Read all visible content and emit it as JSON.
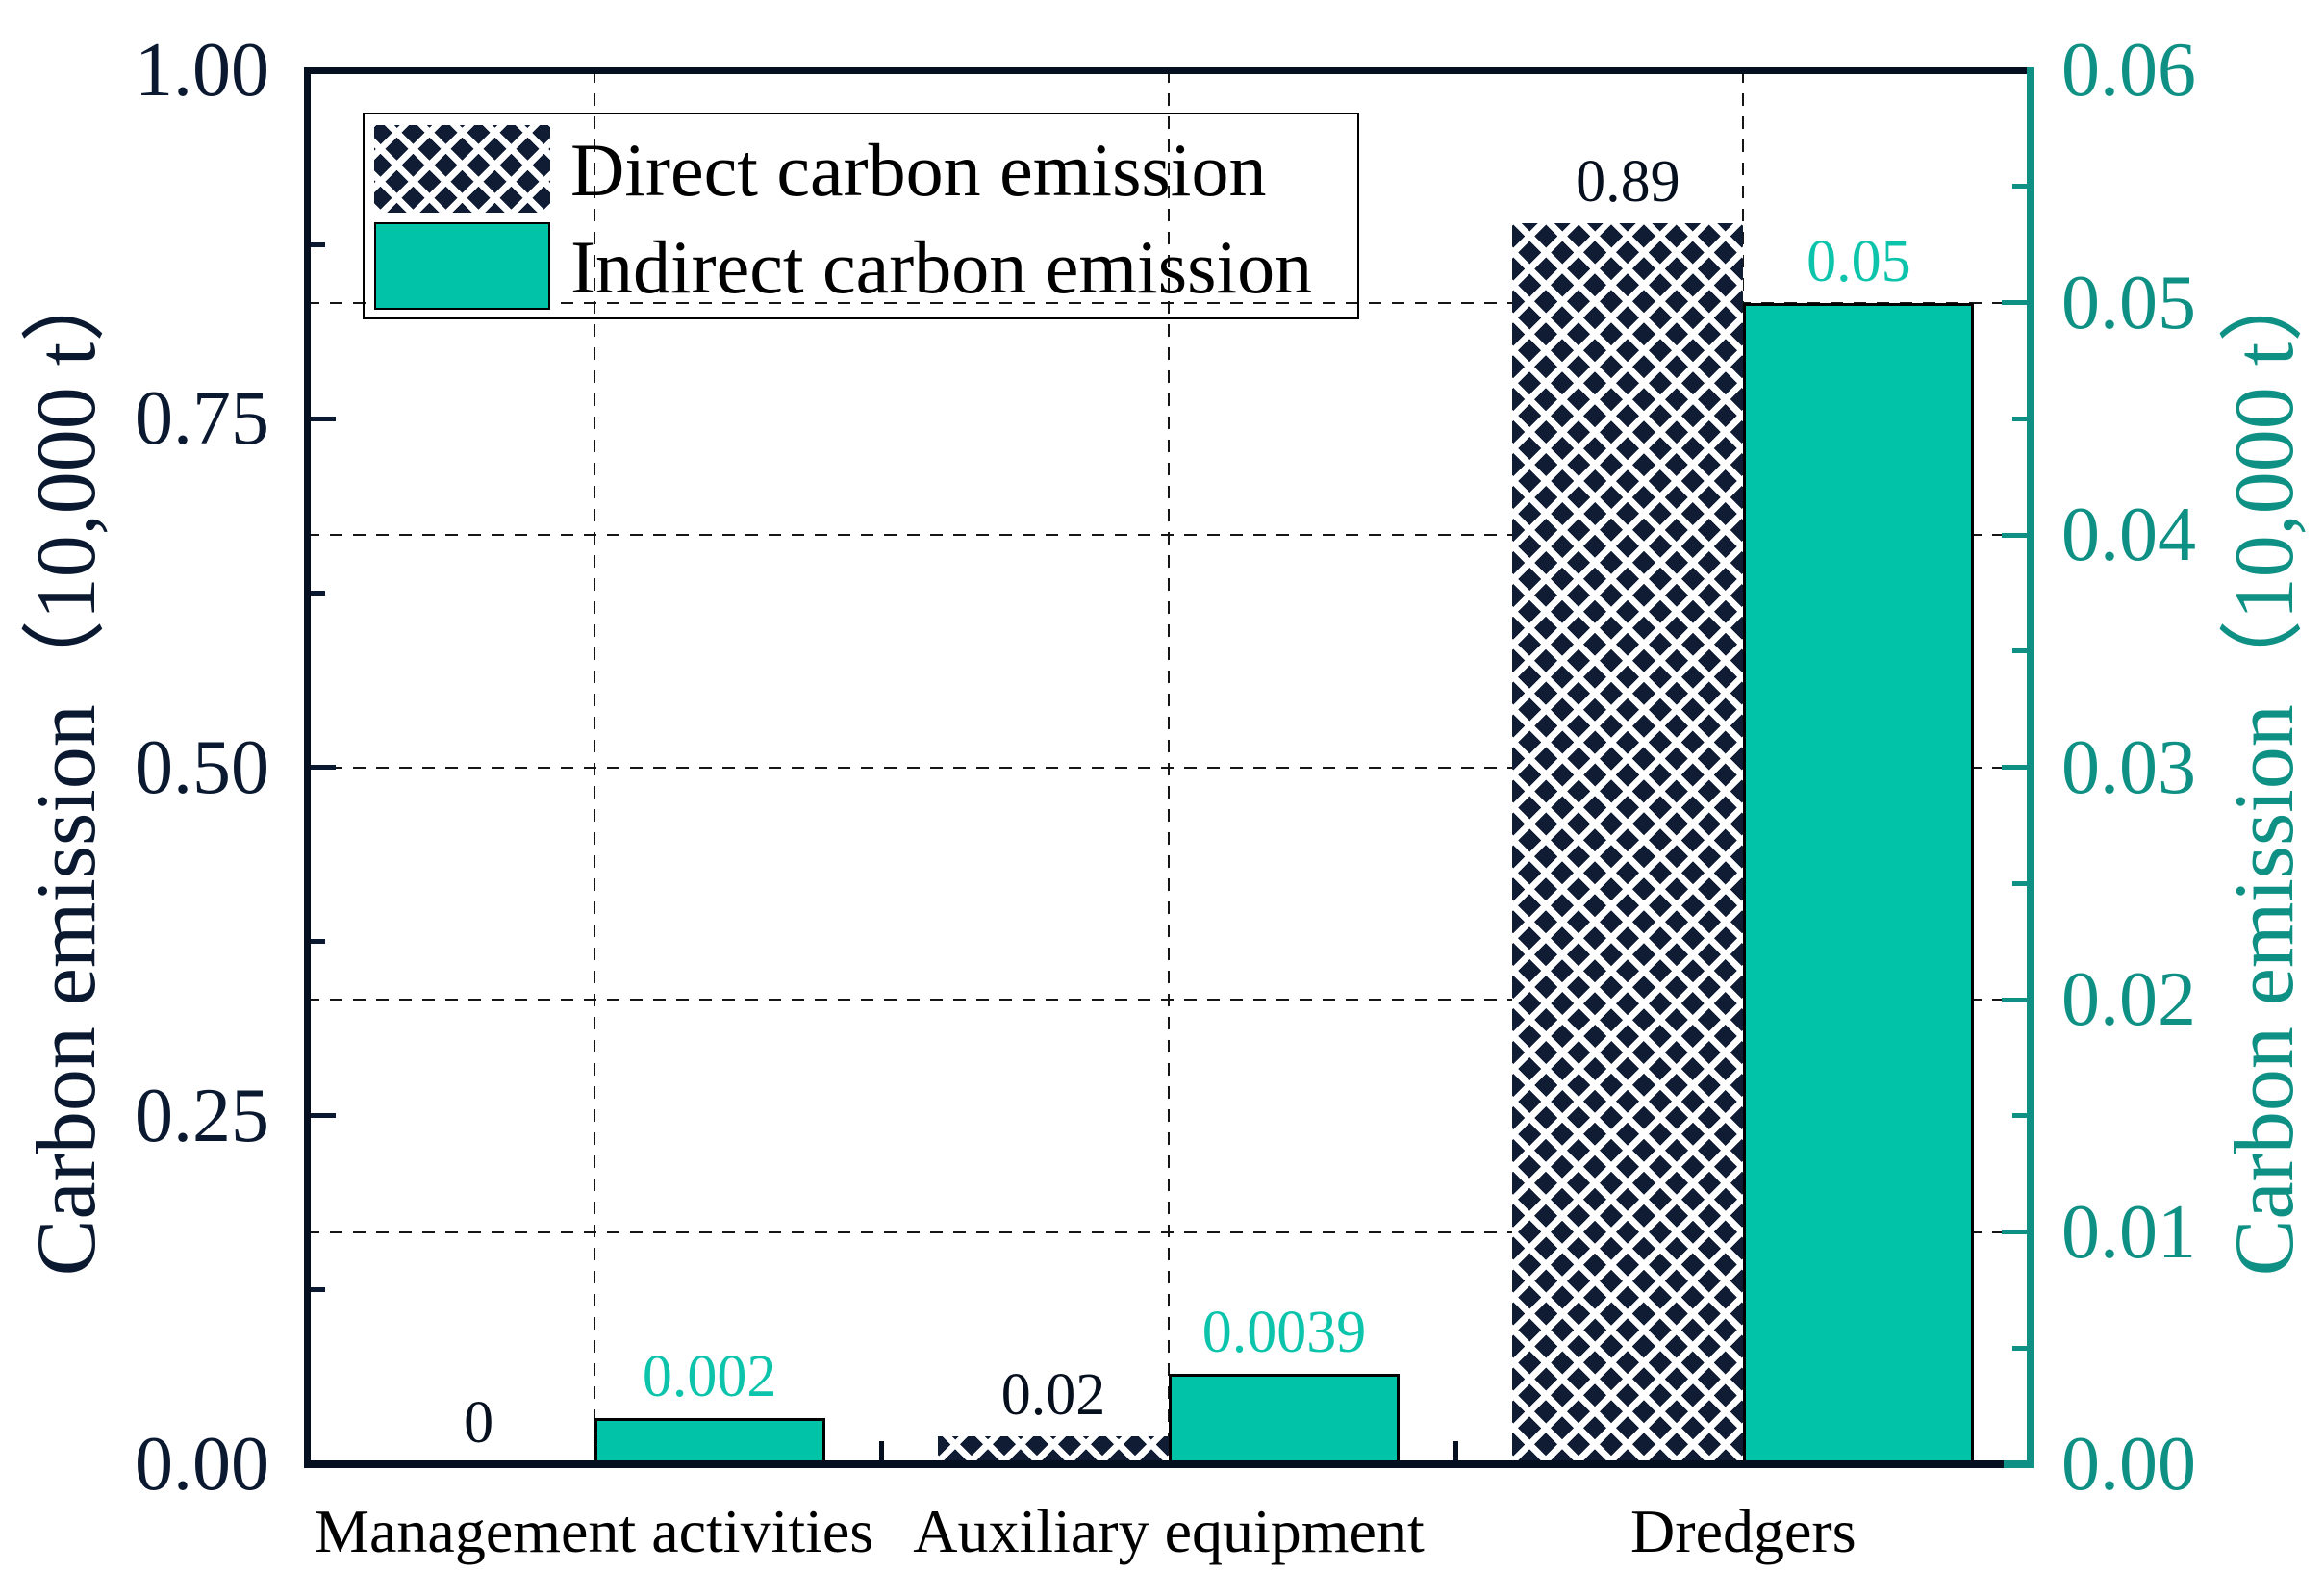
{
  "chart_data": {
    "type": "bar",
    "title": "",
    "categories": [
      "Management activities",
      "Auxiliary equipment",
      "Dredgers"
    ],
    "series": [
      {
        "name": "Direct carbon emission",
        "axis": "left",
        "values": [
          0,
          0.02,
          0.89
        ],
        "value_labels": [
          "0",
          "0.02",
          "0.89"
        ],
        "fill": "#101c34",
        "pattern": "white-diagonal-crosshatch"
      },
      {
        "name": "Indirect carbon emission",
        "axis": "right",
        "values": [
          0.002,
          0.0039,
          0.05
        ],
        "value_labels": [
          "0.002",
          "0.0039",
          "0.05"
        ],
        "fill": "#00c3a8",
        "pattern": "solid"
      }
    ],
    "left_axis": {
      "label": "Carbon emission（10,000 t）",
      "min": 0.0,
      "max": 1.0,
      "major_step": 0.25,
      "minor_step": 0.125,
      "tick_labels": [
        "0.00",
        "0.25",
        "0.50",
        "0.75",
        "1.00"
      ],
      "color": "#0a1930"
    },
    "right_axis": {
      "label": "Carbon emission（10,000 t）",
      "min": 0.0,
      "max": 0.06,
      "major_step": 0.01,
      "minor_step": 0.005,
      "tick_labels": [
        "0.00",
        "0.01",
        "0.02",
        "0.03",
        "0.04",
        "0.05",
        "0.06"
      ],
      "color": "#0e9184"
    },
    "grid": {
      "horizontal": "right-axis-majors",
      "vertical": "category-centers",
      "style": "dashed",
      "color": "#161616"
    },
    "legend": {
      "position": "top-left",
      "entries": [
        "Direct carbon emission",
        "Indirect carbon emission"
      ]
    }
  },
  "colors": {
    "background": "#ffffff",
    "frame": "#04101f",
    "direct_fill": "#101c34",
    "indirect_fill": "#00c3a8",
    "left_axis": "#0a1930",
    "right_axis": "#0e9184",
    "indirect_label": "#0cc4ab"
  }
}
